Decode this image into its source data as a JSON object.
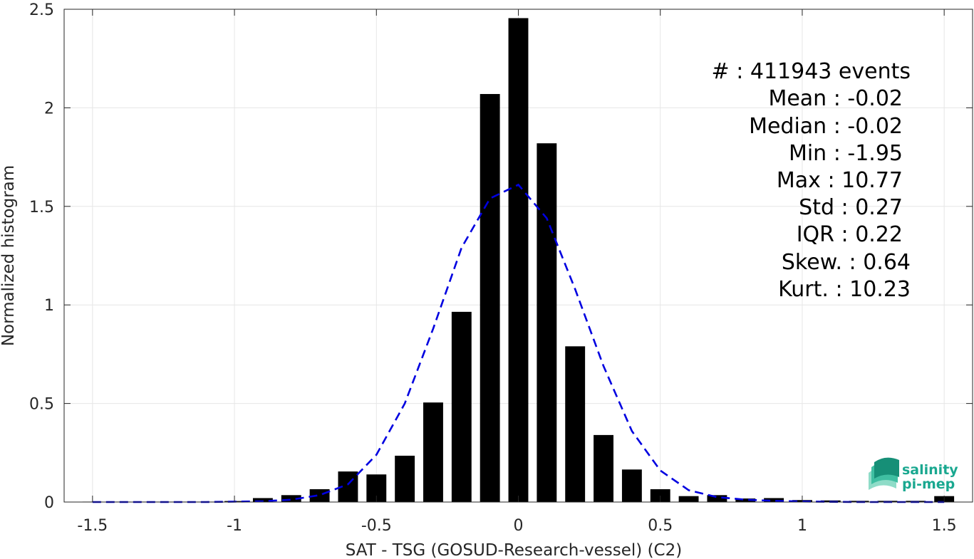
{
  "chart_data": {
    "type": "bar",
    "xlabel": "SAT - TSG (GOSUD-Research-vessel) (C2)",
    "ylabel": "Normalized histogram",
    "xlim": [
      -1.6,
      1.6
    ],
    "ylim": [
      0,
      2.5
    ],
    "grid": true,
    "x_ticks": [
      "-1.5",
      "-1",
      "-0.5",
      "0",
      "0.5",
      "1",
      "1.5"
    ],
    "x_tick_values": [
      -1.5,
      -1,
      -0.5,
      0,
      0.5,
      1,
      1.5
    ],
    "y_ticks": [
      "0",
      "0.5",
      "1",
      "1.5",
      "2",
      "2.5"
    ],
    "y_tick_values": [
      0,
      0.5,
      1,
      1.5,
      2,
      2.5
    ],
    "bars": {
      "color": "#000000",
      "x": [
        -1.5,
        -1.4,
        -1.3,
        -1.2,
        -1.1,
        -1.0,
        -0.9,
        -0.8,
        -0.7,
        -0.6,
        -0.5,
        -0.4,
        -0.3,
        -0.2,
        -0.1,
        0.0,
        0.1,
        0.2,
        0.3,
        0.4,
        0.5,
        0.6,
        0.7,
        0.8,
        0.9,
        1.0,
        1.1,
        1.2,
        1.3,
        1.4,
        1.5
      ],
      "values": [
        0.002,
        0.002,
        0.002,
        0.002,
        0.002,
        0.005,
        0.02,
        0.035,
        0.065,
        0.155,
        0.14,
        0.235,
        0.505,
        0.965,
        2.07,
        2.455,
        1.82,
        0.79,
        0.34,
        0.165,
        0.065,
        0.03,
        0.035,
        0.018,
        0.02,
        0.01,
        0.008,
        0.006,
        0.006,
        0.006,
        0.03
      ]
    },
    "fit_curve": {
      "style": "dashed",
      "color": "#0000e0",
      "x": [
        -1.5,
        -1.4,
        -1.3,
        -1.2,
        -1.1,
        -1.0,
        -0.9,
        -0.8,
        -0.7,
        -0.6,
        -0.5,
        -0.4,
        -0.3,
        -0.2,
        -0.1,
        0.0,
        0.1,
        0.2,
        0.3,
        0.4,
        0.5,
        0.6,
        0.7,
        0.8,
        0.9,
        1.0,
        1.1,
        1.2,
        1.3,
        1.4,
        1.5
      ],
      "y": [
        0.0,
        0.0,
        0.0,
        0.0,
        0.0,
        0.002,
        0.004,
        0.012,
        0.035,
        0.09,
        0.24,
        0.5,
        0.88,
        1.29,
        1.54,
        1.61,
        1.44,
        1.08,
        0.69,
        0.36,
        0.16,
        0.06,
        0.025,
        0.012,
        0.006,
        0.003,
        0.001,
        0.0,
        0.0,
        0.0,
        0.0
      ]
    },
    "annotations": [
      "#  : 411943 events",
      "Mean : -0.02",
      "Median : -0.02",
      "Min : -1.95",
      "Max : 10.77",
      "Std : 0.27",
      "IQR : 0.22",
      "Skew. : 0.64",
      "Kurt. : 10.23"
    ]
  },
  "logo": {
    "line1": "salinity",
    "line2": "pi-mep",
    "color": "#1aa890"
  }
}
